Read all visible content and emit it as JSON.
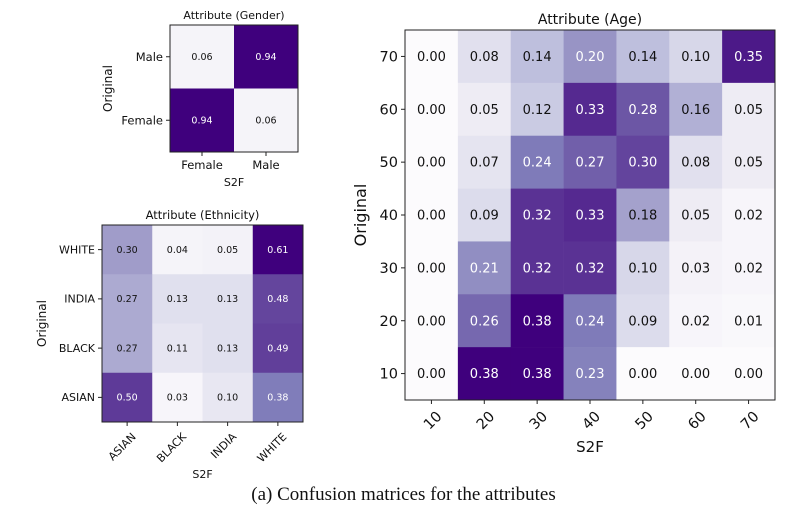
{
  "caption": "(a) Confusion matrices for the attributes",
  "chart_data": [
    {
      "type": "heatmap",
      "title": "Attribute (Gender)",
      "xlabel": "S2F",
      "ylabel": "Original",
      "x_categories": [
        "Female",
        "Male"
      ],
      "y_categories": [
        "Male",
        "Female"
      ],
      "values": [
        [
          0.06,
          0.94
        ],
        [
          0.94,
          0.06
        ]
      ],
      "x_label_rotation": 0
    },
    {
      "type": "heatmap",
      "title": "Attribute (Ethnicity)",
      "xlabel": "S2F",
      "ylabel": "Original",
      "x_categories": [
        "ASIAN",
        "BLACK",
        "INDIA",
        "WHITE"
      ],
      "y_categories": [
        "WHITE",
        "INDIA",
        "BLACK",
        "ASIAN"
      ],
      "values": [
        [
          0.3,
          0.04,
          0.05,
          0.61
        ],
        [
          0.27,
          0.13,
          0.13,
          0.48
        ],
        [
          0.27,
          0.11,
          0.13,
          0.49
        ],
        [
          0.5,
          0.03,
          0.1,
          0.38
        ]
      ],
      "x_label_rotation": -45
    },
    {
      "type": "heatmap",
      "title": "Attribute (Age)",
      "xlabel": "S2F",
      "ylabel": "Original",
      "x_categories": [
        "10",
        "20",
        "30",
        "40",
        "50",
        "60",
        "70"
      ],
      "y_categories": [
        "70",
        "60",
        "50",
        "40",
        "30",
        "20",
        "10"
      ],
      "values": [
        [
          0.0,
          0.08,
          0.14,
          0.2,
          0.14,
          0.1,
          0.35
        ],
        [
          0.0,
          0.05,
          0.12,
          0.33,
          0.28,
          0.16,
          0.05
        ],
        [
          0.0,
          0.07,
          0.24,
          0.27,
          0.3,
          0.08,
          0.05
        ],
        [
          0.0,
          0.09,
          0.32,
          0.33,
          0.18,
          0.05,
          0.02
        ],
        [
          0.0,
          0.21,
          0.32,
          0.32,
          0.1,
          0.03,
          0.02
        ],
        [
          0.0,
          0.26,
          0.38,
          0.24,
          0.09,
          0.02,
          0.01
        ],
        [
          0.0,
          0.38,
          0.38,
          0.23,
          0.0,
          0.0,
          0.0
        ]
      ],
      "x_label_rotation": -45
    }
  ]
}
